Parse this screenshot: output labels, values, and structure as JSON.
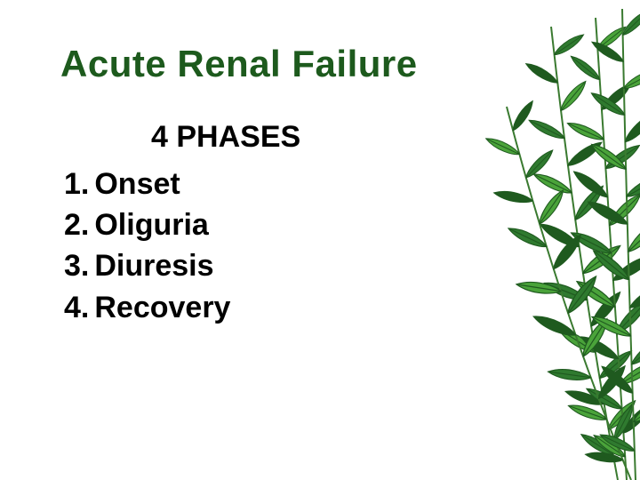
{
  "slide": {
    "title": "Acute Renal Failure",
    "title_color": "#1d5a1d",
    "title_fontsize": 42,
    "subtitle": "4 PHASES",
    "subtitle_fontsize": 34,
    "list_fontsize": 34,
    "list_color": "#000000",
    "items": [
      {
        "n": "1.",
        "label": "Onset"
      },
      {
        "n": "2.",
        "label": "Oliguria"
      },
      {
        "n": "3.",
        "label": "Diuresis"
      },
      {
        "n": "4.",
        "label": "Recovery"
      }
    ],
    "background_color": "#ffffff",
    "foliage": {
      "leaf_fill": "#2f7a2f",
      "leaf_fill_dark": "#1f5a1f",
      "leaf_fill_light": "#4aa33a",
      "stem_color": "#3a7a30"
    }
  }
}
